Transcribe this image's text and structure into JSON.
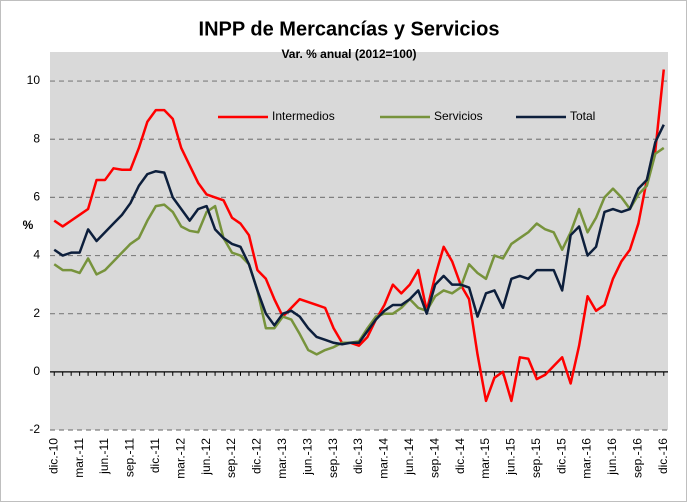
{
  "chart_data": {
    "type": "line",
    "title": "INPP de Mercancías y Servicios",
    "subtitle": "Var. % anual (2012=100)",
    "ylabel": "%",
    "categories": [
      "dic.-10",
      null,
      null,
      "mar.-11",
      null,
      null,
      "jun.-11",
      null,
      null,
      "sep.-11",
      null,
      null,
      "dic.-11",
      null,
      null,
      "mar.-12",
      null,
      null,
      "jun.-12",
      null,
      null,
      "sep.-12",
      null,
      null,
      "dic.-12",
      null,
      null,
      "mar.-13",
      null,
      null,
      "jun.-13",
      null,
      null,
      "sep.-13",
      null,
      null,
      "dic.-13",
      null,
      null,
      "mar.-14",
      null,
      null,
      "jun.-14",
      null,
      null,
      "sep.-14",
      null,
      null,
      "dic.-14",
      null,
      null,
      "mar.-15",
      null,
      null,
      "jun.-15",
      null,
      null,
      "sep.-15",
      null,
      null,
      "dic.-15",
      null,
      null,
      "mar.-16",
      null,
      null,
      "jun.-16",
      null,
      null,
      "sep.-16",
      null,
      null,
      "dic.-16"
    ],
    "series": [
      {
        "name": "Intermedios",
        "color": "#ff0000",
        "values": [
          5.2,
          5.0,
          5.2,
          5.4,
          5.6,
          6.6,
          6.6,
          7.0,
          6.95,
          6.95,
          7.7,
          8.6,
          9.0,
          9.0,
          8.7,
          7.7,
          7.1,
          6.5,
          6.1,
          6.0,
          5.9,
          5.3,
          5.1,
          4.7,
          3.5,
          3.2,
          2.5,
          1.9,
          2.2,
          2.5,
          2.4,
          2.3,
          2.2,
          1.5,
          1.0,
          1.0,
          0.9,
          1.2,
          1.8,
          2.3,
          3.0,
          2.7,
          3.0,
          3.5,
          2.1,
          3.3,
          4.3,
          3.8,
          3.0,
          2.5,
          0.6,
          -1.0,
          -0.2,
          0.0,
          -1.0,
          0.5,
          0.45,
          -0.25,
          -0.1,
          0.2,
          0.5,
          -0.4,
          0.9,
          2.6,
          2.1,
          2.3,
          3.2,
          3.8,
          4.2,
          5.1,
          6.6,
          7.6,
          10.4
        ]
      },
      {
        "name": "Servicios",
        "color": "#77933c",
        "values": [
          3.7,
          3.5,
          3.5,
          3.4,
          3.9,
          3.35,
          3.5,
          3.8,
          4.1,
          4.4,
          4.6,
          5.2,
          5.7,
          5.75,
          5.5,
          5.0,
          4.85,
          4.8,
          5.5,
          5.7,
          4.6,
          4.1,
          4.0,
          3.7,
          2.8,
          1.5,
          1.5,
          1.9,
          1.8,
          1.3,
          0.75,
          0.6,
          0.75,
          0.85,
          1.0,
          1.0,
          1.05,
          1.5,
          1.9,
          2.0,
          2.0,
          2.2,
          2.5,
          2.2,
          2.1,
          2.6,
          2.8,
          2.7,
          2.9,
          3.7,
          3.4,
          3.2,
          4.0,
          3.9,
          4.4,
          4.6,
          4.8,
          5.1,
          4.9,
          4.8,
          4.2,
          4.8,
          5.6,
          4.8,
          5.3,
          6.0,
          6.3,
          6.0,
          5.6,
          6.1,
          6.4,
          7.5,
          7.7
        ]
      },
      {
        "name": "Total",
        "color": "#0d1f3c",
        "values": [
          4.2,
          4.0,
          4.1,
          4.1,
          4.9,
          4.5,
          4.8,
          5.1,
          5.4,
          5.8,
          6.4,
          6.8,
          6.9,
          6.85,
          6.0,
          5.6,
          5.2,
          5.6,
          5.7,
          4.9,
          4.6,
          4.4,
          4.3,
          3.7,
          2.8,
          2.0,
          1.6,
          2.0,
          2.1,
          1.9,
          1.5,
          1.2,
          1.1,
          1.0,
          0.95,
          1.0,
          1.0,
          1.4,
          1.8,
          2.1,
          2.3,
          2.3,
          2.5,
          2.8,
          2.0,
          3.0,
          3.3,
          3.0,
          3.0,
          2.9,
          1.9,
          2.7,
          2.8,
          2.2,
          3.2,
          3.3,
          3.2,
          3.5,
          3.5,
          3.5,
          2.8,
          4.7,
          5.0,
          4.0,
          4.3,
          5.5,
          5.6,
          5.5,
          5.6,
          6.3,
          6.6,
          7.9,
          8.5
        ]
      }
    ],
    "ylim": [
      -2,
      11
    ],
    "yticks": [
      -2,
      0,
      2,
      4,
      6,
      8,
      10
    ],
    "grid": true,
    "legend": "top"
  }
}
